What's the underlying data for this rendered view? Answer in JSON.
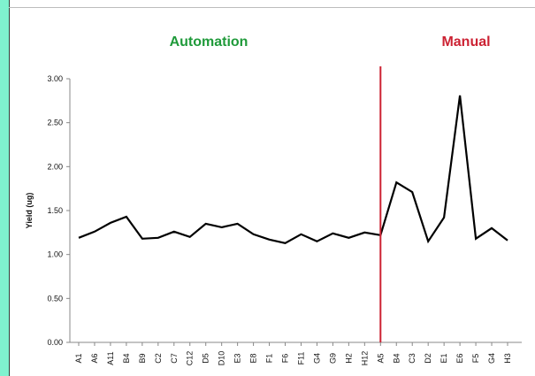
{
  "chart_data": {
    "type": "line",
    "xlabel": "",
    "ylabel": "Yield (ug)",
    "ylim": [
      0,
      3.0
    ],
    "yticks": [
      "0.00",
      "0.50",
      "1.00",
      "1.50",
      "2.00",
      "2.50",
      "3.00"
    ],
    "categories": [
      "A1",
      "A6",
      "A11",
      "B4",
      "B9",
      "C2",
      "C7",
      "C12",
      "D5",
      "D10",
      "E3",
      "E8",
      "F1",
      "F6",
      "F11",
      "G4",
      "G9",
      "H2",
      "H12",
      "A5",
      "B4",
      "C3",
      "D2",
      "E1",
      "E6",
      "F5",
      "G4",
      "H3"
    ],
    "series": [
      {
        "values": [
          1.19,
          1.26,
          1.36,
          1.43,
          1.18,
          1.19,
          1.26,
          1.2,
          1.35,
          1.31,
          1.35,
          1.23,
          1.17,
          1.13,
          1.23,
          1.15,
          1.24,
          1.19,
          1.25,
          1.22,
          1.82,
          1.71,
          1.15,
          1.42,
          2.81,
          1.18,
          1.3,
          1.16
        ]
      }
    ],
    "divider_after_index": 19,
    "annotations": [
      {
        "text": "Automation",
        "color": "#1f9a3a"
      },
      {
        "text": "Manual",
        "color": "#cc2233"
      }
    ],
    "colors": {
      "line": "#000000",
      "divider": "#cc2233",
      "axis": "#888888"
    },
    "grid": false,
    "legend": "none"
  }
}
